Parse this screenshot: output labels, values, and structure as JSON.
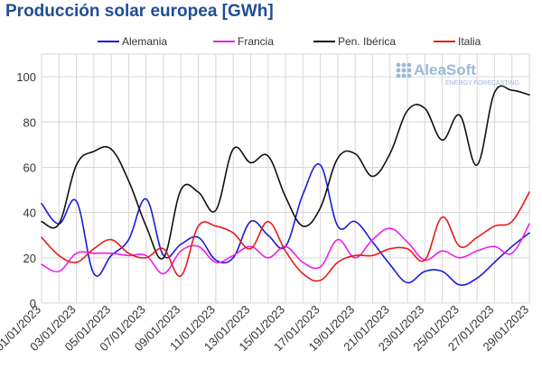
{
  "logo": {
    "name": "AleaSoft",
    "tagline": "ENERGY FORECASTING",
    "color": "#9db8d8"
  },
  "chart_data": {
    "type": "line",
    "title": "Producción solar europea [GWh]",
    "xlabel": "",
    "ylabel": "",
    "ylim": [
      0,
      110
    ],
    "yticks": [
      0,
      20,
      40,
      60,
      80,
      100
    ],
    "x": [
      "01/01/2023",
      "02/01/2023",
      "03/01/2023",
      "04/01/2023",
      "05/01/2023",
      "06/01/2023",
      "07/01/2023",
      "08/01/2023",
      "09/01/2023",
      "10/01/2023",
      "11/01/2023",
      "12/01/2023",
      "13/01/2023",
      "14/01/2023",
      "15/01/2023",
      "16/01/2023",
      "17/01/2023",
      "18/01/2023",
      "19/01/2023",
      "20/01/2023",
      "21/01/2023",
      "22/01/2023",
      "23/01/2023",
      "24/01/2023",
      "25/01/2023",
      "26/01/2023",
      "27/01/2023",
      "28/01/2023",
      "29/01/2023"
    ],
    "xtick_labels": [
      "01/01/2023",
      "03/01/2023",
      "05/01/2023",
      "07/01/2023",
      "09/01/2023",
      "11/01/2023",
      "13/01/2023",
      "15/01/2023",
      "17/01/2023",
      "19/01/2023",
      "21/01/2023",
      "23/01/2023",
      "25/01/2023",
      "27/01/2023",
      "29/01/2023"
    ],
    "grid": true,
    "legend_position": "top",
    "series": [
      {
        "name": "Alemania",
        "color": "#1a1adb",
        "values": [
          44,
          35,
          45,
          13,
          21,
          28,
          46,
          21,
          26,
          29,
          19,
          20,
          36,
          30,
          25,
          48,
          61,
          34,
          36,
          27,
          17,
          9,
          14,
          14,
          8,
          11,
          18,
          25,
          31
        ]
      },
      {
        "name": "Francia",
        "color": "#ee1ee8",
        "values": [
          17,
          14,
          22,
          22,
          22,
          21,
          21,
          13,
          23,
          25,
          18,
          21,
          25,
          20,
          25,
          18,
          16,
          28,
          20,
          28,
          33,
          27,
          19,
          23,
          20,
          23,
          25,
          22,
          35
        ]
      },
      {
        "name": "Pen. Ibérica",
        "color": "#111111",
        "values": [
          36,
          35,
          61,
          67,
          68,
          54,
          34,
          20,
          50,
          49,
          41,
          68,
          62,
          65,
          47,
          34,
          42,
          64,
          66,
          56,
          66,
          85,
          86,
          72,
          83,
          61,
          93,
          94,
          92
        ]
      },
      {
        "name": "Italia",
        "color": "#e81a1a",
        "values": [
          29,
          21,
          18,
          24,
          28,
          22,
          20,
          24,
          12,
          34,
          34,
          31,
          24,
          36,
          23,
          13,
          10,
          18,
          21,
          21,
          24,
          24,
          19,
          38,
          25,
          29,
          34,
          36,
          49
        ]
      }
    ]
  }
}
